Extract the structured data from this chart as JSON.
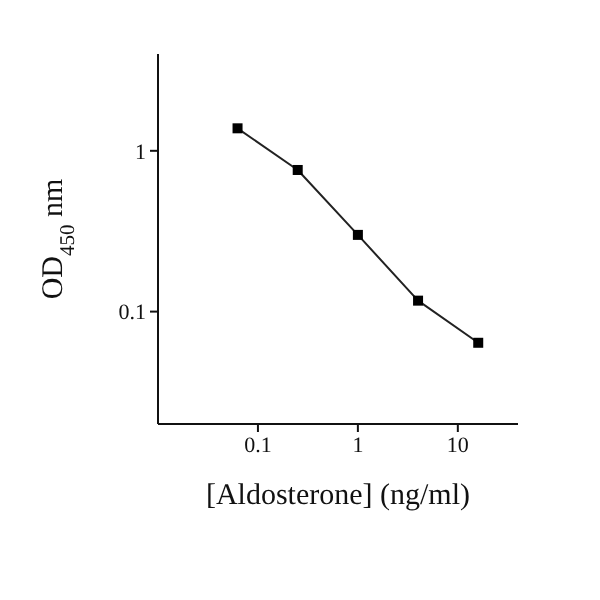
{
  "chart_data": {
    "type": "line",
    "xlabel": "[Aldosterone] (ng/ml)",
    "ylabel": "OD$_{450}$ nm",
    "log": "xy",
    "x": [
      0.0625,
      0.25,
      1,
      4,
      16
    ],
    "series": [
      {
        "color": "#222222",
        "values": [
          1.38,
          0.76,
          0.3,
          0.117,
          0.064
        ]
      }
    ],
    "xlim": [
      0.01,
      40
    ],
    "xticks": [
      0.1,
      1,
      10
    ],
    "ylim": [
      0.02,
      4
    ],
    "yticks": [
      0.1,
      1
    ],
    "marker": "square",
    "line_style": "solid",
    "grid": false,
    "legend": false
  }
}
